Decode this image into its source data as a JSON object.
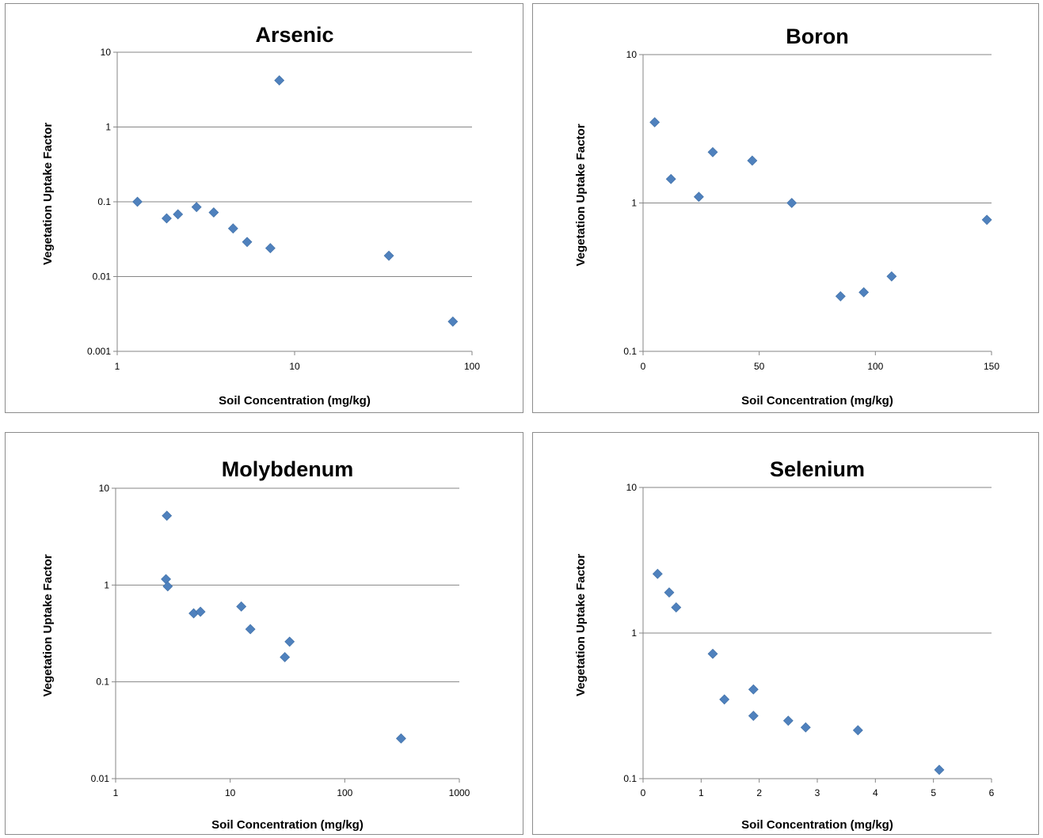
{
  "colors": {
    "marker": "#4f81bd",
    "grid": "#868686",
    "axis": "#868686"
  },
  "chart_data": [
    {
      "type": "scatter",
      "title": "Arsenic",
      "xlabel": "Soil Concentration (mg/kg)",
      "ylabel": "Vegetation Uptake Factor",
      "xscale": "log",
      "yscale": "log",
      "xlim": [
        1,
        100
      ],
      "ylim": [
        0.001,
        10
      ],
      "xticks": [
        1,
        10,
        100
      ],
      "xticklabels": [
        "1",
        "10",
        "100"
      ],
      "yticks": [
        0.001,
        0.01,
        0.1,
        1,
        10
      ],
      "yticklabels": [
        "0.001",
        "0.01",
        "0.1",
        "1",
        "10"
      ],
      "grid": "horizontal",
      "legend": "none",
      "points": [
        [
          1.3,
          0.1
        ],
        [
          1.9,
          0.06
        ],
        [
          2.2,
          0.068
        ],
        [
          2.8,
          0.085
        ],
        [
          3.5,
          0.072
        ],
        [
          4.5,
          0.044
        ],
        [
          5.4,
          0.029
        ],
        [
          7.3,
          0.024
        ],
        [
          8.2,
          4.2
        ],
        [
          34,
          0.019
        ],
        [
          78,
          0.0025
        ]
      ]
    },
    {
      "type": "scatter",
      "title": "Boron",
      "xlabel": "Soil Concentration (mg/kg)",
      "ylabel": "Vegetation Uptake Factor",
      "xscale": "linear",
      "yscale": "log",
      "xlim": [
        0,
        150
      ],
      "ylim": [
        0.1,
        10
      ],
      "xticks": [
        0,
        50,
        100,
        150
      ],
      "xticklabels": [
        "0",
        "50",
        "100",
        "150"
      ],
      "yticks": [
        0.1,
        1,
        10
      ],
      "yticklabels": [
        "0.1",
        "1",
        "10"
      ],
      "grid": "horizontal",
      "legend": "none",
      "points": [
        [
          5,
          3.5
        ],
        [
          12,
          1.45
        ],
        [
          24,
          1.1
        ],
        [
          30,
          2.2
        ],
        [
          47,
          1.93
        ],
        [
          64,
          1.0
        ],
        [
          85,
          0.235
        ],
        [
          95,
          0.25
        ],
        [
          107,
          0.32
        ],
        [
          148,
          0.77
        ]
      ]
    },
    {
      "type": "scatter",
      "title": "Molybdenum",
      "xlabel": "Soil Concentration (mg/kg)",
      "ylabel": "Vegetation Uptake Factor",
      "xscale": "log",
      "yscale": "log",
      "xlim": [
        1,
        1000
      ],
      "ylim": [
        0.01,
        10
      ],
      "xticks": [
        1,
        10,
        100,
        1000
      ],
      "xticklabels": [
        "1",
        "10",
        "100",
        "1000"
      ],
      "yticks": [
        0.01,
        0.1,
        1,
        10
      ],
      "yticklabels": [
        "0.01",
        "0.1",
        "1",
        "10"
      ],
      "grid": "horizontal",
      "legend": "none",
      "points": [
        [
          2.8,
          5.2
        ],
        [
          2.75,
          1.15
        ],
        [
          2.85,
          0.97
        ],
        [
          4.8,
          0.51
        ],
        [
          5.5,
          0.53
        ],
        [
          12.5,
          0.6
        ],
        [
          15,
          0.35
        ],
        [
          30,
          0.18
        ],
        [
          33,
          0.26
        ],
        [
          310,
          0.026
        ]
      ]
    },
    {
      "type": "scatter",
      "title": "Selenium",
      "xlabel": "Soil Concentration (mg/kg)",
      "ylabel": "Vegetation Uptake Factor",
      "xscale": "linear",
      "yscale": "log",
      "xlim": [
        0,
        6
      ],
      "ylim": [
        0.1,
        10
      ],
      "xticks": [
        0,
        1,
        2,
        3,
        4,
        5,
        6
      ],
      "xticklabels": [
        "0",
        "1",
        "2",
        "3",
        "4",
        "5",
        "6"
      ],
      "yticks": [
        0.1,
        1,
        10
      ],
      "yticklabels": [
        "0.1",
        "1",
        "10"
      ],
      "grid": "horizontal",
      "legend": "none",
      "points": [
        [
          0.25,
          2.55
        ],
        [
          0.45,
          1.9
        ],
        [
          0.57,
          1.5
        ],
        [
          1.2,
          0.72
        ],
        [
          1.4,
          0.35
        ],
        [
          1.9,
          0.41
        ],
        [
          1.9,
          0.27
        ],
        [
          2.5,
          0.25
        ],
        [
          2.8,
          0.225
        ],
        [
          3.7,
          0.215
        ],
        [
          5.1,
          0.115
        ]
      ]
    }
  ]
}
